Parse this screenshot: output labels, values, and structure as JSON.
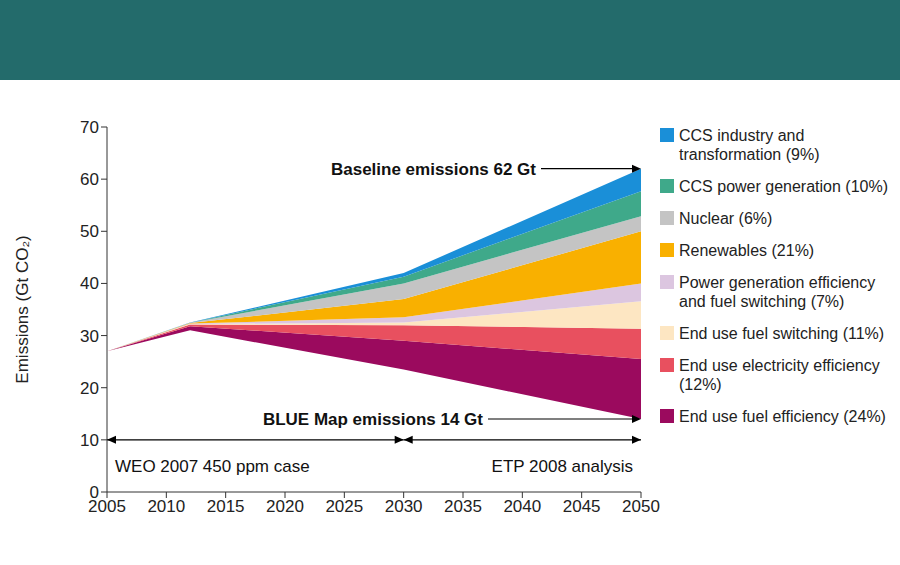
{
  "chart_data": {
    "type": "area",
    "stacked": true,
    "y_label": "Emissions (Gt CO₂)",
    "x": [
      2005,
      2012,
      2030,
      2050
    ],
    "xlim": [
      2005,
      2050
    ],
    "xticks": [
      2005,
      2010,
      2015,
      2020,
      2025,
      2030,
      2035,
      2040,
      2045,
      2050
    ],
    "ylim": [
      0,
      70
    ],
    "yticks": [
      0,
      10,
      20,
      30,
      40,
      50,
      60,
      70
    ],
    "blue_map": [
      27,
      31,
      23.5,
      14
    ],
    "baseline_label": "Baseline emissions 62 Gt",
    "blue_map_label": "BLUE Map emissions 14 Gt",
    "periods": [
      {
        "label": "WEO 2007 450 ppm case",
        "from": 2005,
        "to": 2030,
        "y": 10
      },
      {
        "label": "ETP 2008 analysis",
        "from": 2030,
        "to": 2050,
        "y": 10
      }
    ],
    "series": [
      {
        "name": "CCS industry and transformation (9%)",
        "color": "#1a8fd8",
        "values": [
          0,
          0.02,
          0.7,
          4.3
        ]
      },
      {
        "name": "CCS power generation (10%)",
        "color": "#3fa98a",
        "values": [
          0,
          0.03,
          1.3,
          4.8
        ]
      },
      {
        "name": "Nuclear (6%)",
        "color": "#c4c4c4",
        "values": [
          0,
          0.05,
          3,
          2.9
        ]
      },
      {
        "name": "Renewables (21%)",
        "color": "#f9b000",
        "values": [
          0,
          0.1,
          3.5,
          10
        ]
      },
      {
        "name": "Power generation efficiency and fuel switching (7%)",
        "color": "#dcc6e0",
        "values": [
          0,
          0.1,
          1,
          3.4
        ]
      },
      {
        "name": "End use fuel switching (11%)",
        "color": "#fde6c2",
        "values": [
          0,
          0.1,
          0.5,
          5.3
        ]
      },
      {
        "name": "End use electricity efficiency (12%)",
        "color": "#e8505f",
        "values": [
          0,
          0.3,
          3,
          5.8
        ]
      },
      {
        "name": "End use fuel efficiency (24%)",
        "color": "#9b0a5e",
        "values": [
          0,
          0.8,
          5.5,
          11.5
        ]
      }
    ]
  }
}
